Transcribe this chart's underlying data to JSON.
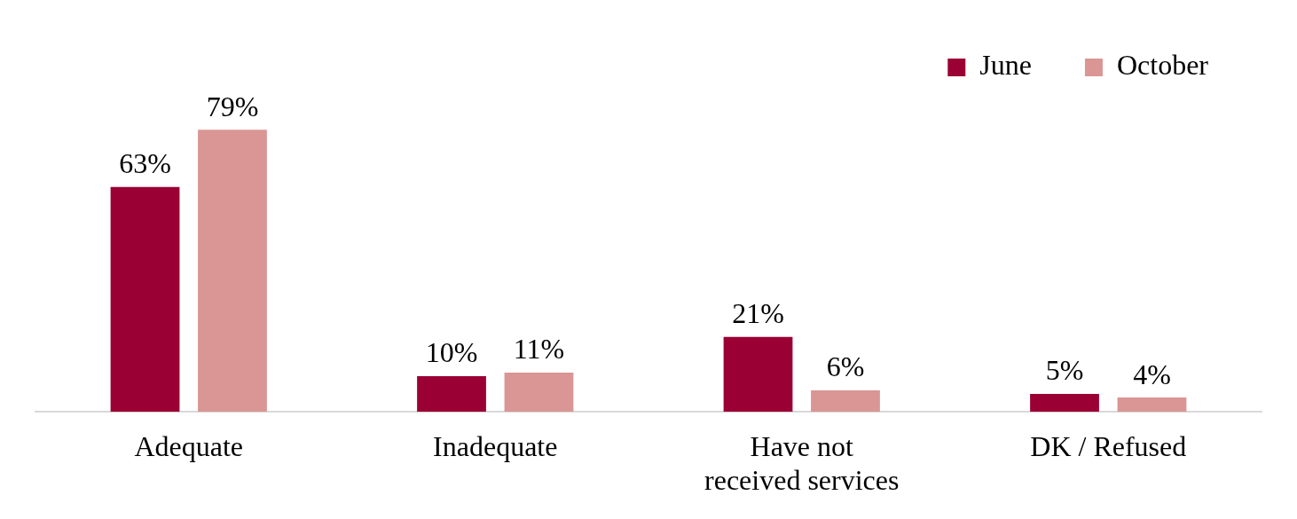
{
  "chart_data": {
    "type": "bar",
    "categories": [
      "Adequate",
      "Inadequate",
      "Have not received services",
      "DK / Refused"
    ],
    "series": [
      {
        "name": "June",
        "color": "#9b0034",
        "values": [
          63,
          10,
          21,
          5
        ],
        "value_labels": [
          "63%",
          "10%",
          "21%",
          "5%"
        ]
      },
      {
        "name": "October",
        "color": "#d99694",
        "values": [
          79,
          11,
          6,
          4
        ],
        "value_labels": [
          "79%",
          "11%",
          "6%",
          "4%"
        ]
      }
    ],
    "legend": "top right",
    "grid": false
  }
}
